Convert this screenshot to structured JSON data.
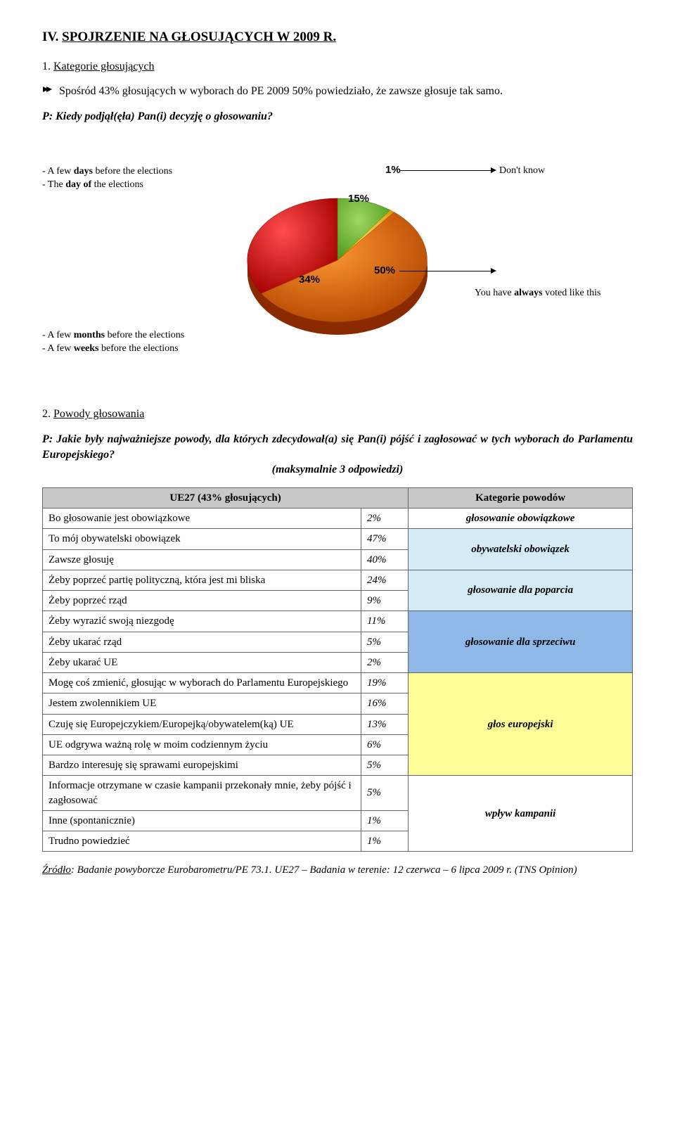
{
  "section_number": "IV.",
  "section_title": "SPOJRZENIE NA GŁOSUJĄCYCH W 2009 R.",
  "sub1_num": "1.",
  "sub1_title": "Kategorie głosujących",
  "bullet1": "Spośród 43% głosujących w wyborach do PE 2009 50% powiedziało, że zawsze głosuje tak samo.",
  "q1": "P: Kiedy podjął(ęła) Pan(i) decyzję o głosowaniu?",
  "chart": {
    "slices": [
      {
        "label_line1": "- A few days before the elections",
        "label_line1_bold": "days",
        "label_line2": "- The day of the elections",
        "label_line2_bold": "day of",
        "value": 15,
        "color1": "#7fc241",
        "color2": "#4f9a1e",
        "start": -90,
        "end": -36
      },
      {
        "label": "Don't know",
        "value": 1,
        "color1": "#ffc000",
        "color2": "#d99500",
        "start": -36,
        "end": -32.4
      },
      {
        "label_line1": "You have always voted like this",
        "label_bold": "always",
        "value": 50,
        "color1": "#ff9933",
        "color2": "#cc5200",
        "start": -32.4,
        "end": 147.6
      },
      {
        "label_line1": "- A few months before the elections",
        "label_line1_bold": "months",
        "label_line2": "- A few weeks before the elections",
        "label_line2_bold": "weeks",
        "value": 34,
        "color1": "#ff3333",
        "color2": "#b30000",
        "start": 147.6,
        "end": 270
      }
    ],
    "pct_labels": {
      "p15": "15%",
      "p1": "1%",
      "p50": "50%",
      "p34": "34%"
    }
  },
  "sub2_num": "2.",
  "sub2_title": "Powody głosowania",
  "q2_line1": "P: Jakie były najważniejsze powody, dla których zdecydował(a) się Pan(i) pójść i zagłosować w tych wyborach do Parlamentu Europejskiego?",
  "q2_line2": "(maksymalnie 3 odpowiedzi)",
  "table": {
    "header_left": "UE27 (43% głosujących)",
    "header_right": "Kategorie powodów",
    "rows": [
      {
        "reason": "Bo głosowanie jest obowiązkowe",
        "val": "2%"
      },
      {
        "reason": "To mój obywatelski obowiązek",
        "val": "47%"
      },
      {
        "reason": "Zawsze głosuję",
        "val": "40%"
      },
      {
        "reason": "Żeby poprzeć partię polityczną, która jest mi bliska",
        "val": "24%"
      },
      {
        "reason": "Żeby poprzeć rząd",
        "val": "9%"
      },
      {
        "reason": "Żeby wyrazić swoją niezgodę",
        "val": "11%"
      },
      {
        "reason": "Żeby ukarać rząd",
        "val": "5%"
      },
      {
        "reason": "Żeby ukarać UE",
        "val": "2%"
      },
      {
        "reason": "Mogę coś zmienić, głosując w wyborach do Parlamentu Europejskiego",
        "val": "19%"
      },
      {
        "reason": "Jestem zwolennikiem UE",
        "val": "16%"
      },
      {
        "reason": "Czuję się Europejczykiem/Europejką/obywatelem(ką) UE",
        "val": "13%"
      },
      {
        "reason": "UE odgrywa ważną rolę w moim codziennym życiu",
        "val": "6%"
      },
      {
        "reason": "Bardzo interesuję się sprawami europejskimi",
        "val": "5%"
      },
      {
        "reason": "Informacje otrzymane w czasie kampanii przekonały mnie, żeby pójść i zagłosować",
        "val": "5%"
      },
      {
        "reason": "Inne (spontanicznie)",
        "val": "1%"
      },
      {
        "reason": "Trudno powiedzieć",
        "val": "1%"
      }
    ],
    "cats": [
      {
        "text": "głosowanie obowiązkowe",
        "bg": "#ffffff",
        "rowspan": 1
      },
      {
        "text": "obywatelski obowiązek",
        "bg": "#d4ebf6",
        "rowspan": 2
      },
      {
        "text": "głosowanie dla poparcia",
        "bg": "#d4ebf6",
        "rowspan": 2
      },
      {
        "text": "głosowanie dla sprzeciwu",
        "bg": "#8fb8e8",
        "rowspan": 3
      },
      {
        "text": "głos europejski",
        "bg": "#ffff99",
        "rowspan": 5
      },
      {
        "text": "wpływ kampanii",
        "bg": "#ffffff",
        "rowspan": 3
      }
    ]
  },
  "source_prefix": "Źródło",
  "source_text": ": Badanie powyborcze Eurobarometru/PE 73.1. UE27 – Badania w terenie: 12 czerwca – 6 lipca 2009 r. (TNS Opinion)"
}
